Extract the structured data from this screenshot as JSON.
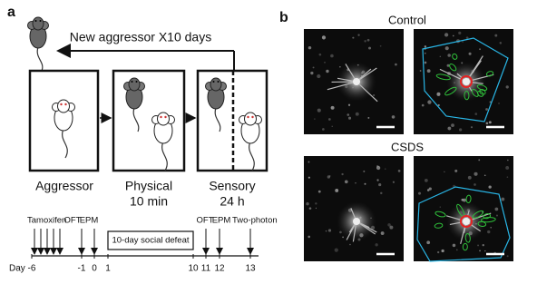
{
  "panel_a": {
    "label": "a",
    "loop_label": "New aggressor X10 days",
    "stages": [
      {
        "lines": [
          "Aggressor"
        ]
      },
      {
        "lines": [
          "Physical",
          "10 min"
        ]
      },
      {
        "lines": [
          "Sensory",
          "24 h"
        ]
      }
    ],
    "timeline": {
      "axis_label": "Day",
      "days": [
        -6,
        -1,
        0,
        1,
        10,
        11,
        12,
        13
      ],
      "events": [
        "Tamoxifen",
        "OFT",
        "EPM",
        "OFT",
        "EPM",
        "Two-photon"
      ],
      "defeat": "10-day social defeat"
    }
  },
  "panel_b": {
    "label": "b",
    "conditions": [
      "Control",
      "CSDS"
    ]
  }
}
